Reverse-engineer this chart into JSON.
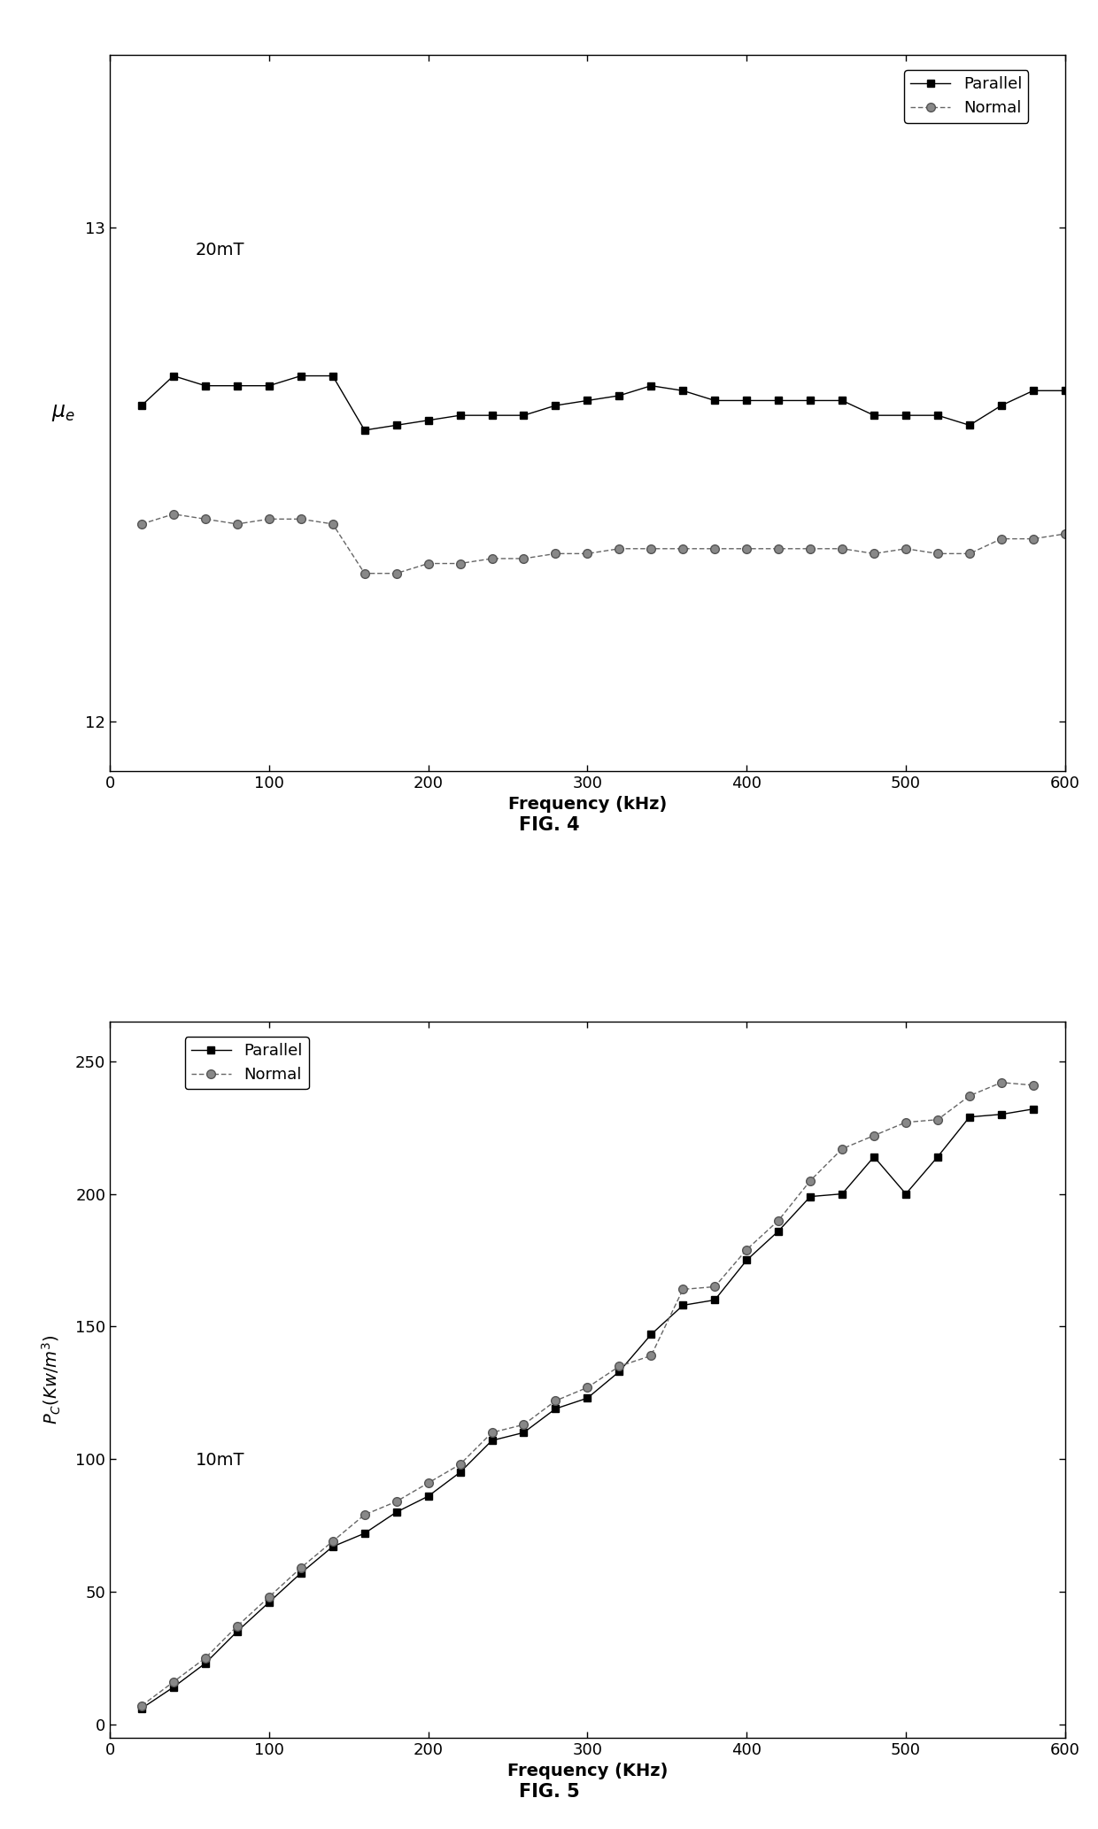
{
  "fig4": {
    "annotation": "20mT",
    "xlabel": "Frequency (kHz)",
    "ylabel_latex": "$\\mu_e$",
    "xlim": [
      0,
      600
    ],
    "ylim": [
      11.9,
      13.35
    ],
    "yticks": [
      12,
      13
    ],
    "xticks": [
      0,
      100,
      200,
      300,
      400,
      500,
      600
    ],
    "parallel_x": [
      20,
      40,
      60,
      80,
      100,
      120,
      140,
      160,
      180,
      200,
      220,
      240,
      260,
      280,
      300,
      320,
      340,
      360,
      380,
      400,
      420,
      440,
      460,
      480,
      500,
      520,
      540,
      560,
      580,
      600
    ],
    "parallel_y": [
      12.64,
      12.7,
      12.68,
      12.68,
      12.68,
      12.7,
      12.7,
      12.59,
      12.6,
      12.61,
      12.62,
      12.62,
      12.62,
      12.64,
      12.65,
      12.66,
      12.68,
      12.67,
      12.65,
      12.65,
      12.65,
      12.65,
      12.65,
      12.62,
      12.62,
      12.62,
      12.6,
      12.64,
      12.67,
      12.67
    ],
    "normal_x": [
      20,
      40,
      60,
      80,
      100,
      120,
      140,
      160,
      180,
      200,
      220,
      240,
      260,
      280,
      300,
      320,
      340,
      360,
      380,
      400,
      420,
      440,
      460,
      480,
      500,
      520,
      540,
      560,
      580,
      600
    ],
    "normal_y": [
      12.4,
      12.42,
      12.41,
      12.4,
      12.41,
      12.41,
      12.4,
      12.3,
      12.3,
      12.32,
      12.32,
      12.33,
      12.33,
      12.34,
      12.34,
      12.35,
      12.35,
      12.35,
      12.35,
      12.35,
      12.35,
      12.35,
      12.35,
      12.34,
      12.35,
      12.34,
      12.34,
      12.37,
      12.37,
      12.38
    ]
  },
  "fig5": {
    "annotation": "10mT",
    "xlabel": "Frequency (KHz)",
    "ylabel_latex": "$P_C(Kw/m^3)$",
    "xlim": [
      0,
      600
    ],
    "ylim": [
      -5,
      265
    ],
    "yticks": [
      0,
      50,
      100,
      150,
      200,
      250
    ],
    "xticks": [
      0,
      100,
      200,
      300,
      400,
      500,
      600
    ],
    "parallel_x": [
      20,
      40,
      60,
      80,
      100,
      120,
      140,
      160,
      180,
      200,
      220,
      240,
      260,
      280,
      300,
      320,
      340,
      360,
      380,
      400,
      420,
      440,
      460,
      480,
      500,
      520,
      540,
      560,
      580
    ],
    "parallel_y": [
      6,
      14,
      23,
      35,
      46,
      57,
      67,
      72,
      80,
      86,
      95,
      107,
      110,
      119,
      123,
      133,
      147,
      158,
      160,
      175,
      186,
      199,
      200,
      214,
      200,
      214,
      229,
      230,
      232
    ],
    "normal_x": [
      20,
      40,
      60,
      80,
      100,
      120,
      140,
      160,
      180,
      200,
      220,
      240,
      260,
      280,
      300,
      320,
      340,
      360,
      380,
      400,
      420,
      440,
      460,
      480,
      500,
      520,
      540,
      560,
      580
    ],
    "normal_y": [
      7,
      16,
      25,
      37,
      48,
      59,
      69,
      79,
      84,
      91,
      98,
      110,
      113,
      122,
      127,
      135,
      139,
      164,
      165,
      179,
      190,
      205,
      217,
      222,
      227,
      228,
      237,
      242,
      241
    ]
  },
  "line_color_parallel": "#000000",
  "line_color_normal": "#666666",
  "background_color": "#ffffff",
  "fig_caption_fontsize": 15,
  "axis_label_fontsize": 14,
  "tick_fontsize": 13,
  "legend_fontsize": 13,
  "annotation_fontsize": 14
}
